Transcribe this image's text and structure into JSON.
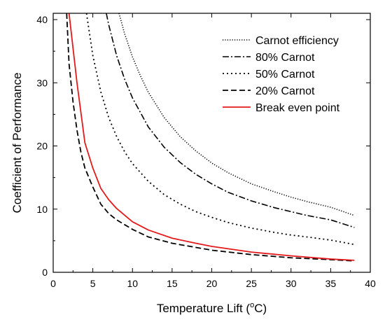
{
  "chart_data": {
    "type": "line",
    "xlabel_main": "Temperature Lift (",
    "xlabel_sup": "o",
    "xlabel_tail": "C)",
    "ylabel": "Coefficient of Performance",
    "xlim": [
      0,
      40
    ],
    "ylim": [
      0,
      41
    ],
    "xticks": [
      "0",
      "5",
      "10",
      "15",
      "20",
      "25",
      "30",
      "35",
      "40"
    ],
    "yticks": [
      "0",
      "10",
      "20",
      "30",
      "40"
    ],
    "grid": false,
    "legend_position": "top-right",
    "series": [
      {
        "name": "Carnot efficiency",
        "style": "dotted",
        "color": "#000000",
        "x": [
          8.3,
          9,
          10,
          11,
          12,
          14,
          16,
          18,
          20,
          22,
          25,
          28,
          30,
          32,
          35,
          38
        ],
        "y": [
          41.0,
          37.8,
          34.1,
          31.1,
          28.5,
          24.5,
          21.5,
          19.2,
          17.3,
          15.8,
          14.0,
          12.7,
          11.9,
          11.2,
          10.3,
          9.0
        ]
      },
      {
        "name": "80% Carnot",
        "style": "dashdot",
        "color": "#000000",
        "x": [
          6.7,
          7,
          8,
          9,
          10,
          12,
          14,
          16,
          18,
          20,
          22,
          25,
          28,
          30,
          32,
          35,
          38
        ],
        "y": [
          41.0,
          39.2,
          34.3,
          30.6,
          27.6,
          23.0,
          19.8,
          17.4,
          15.5,
          14.0,
          12.7,
          11.3,
          10.2,
          9.6,
          9.0,
          8.3,
          7.1
        ]
      },
      {
        "name": "50% Carnot",
        "style": "short-dash",
        "color": "#000000",
        "x": [
          4.2,
          5,
          6,
          7,
          8,
          9,
          10,
          12,
          14,
          16,
          18,
          20,
          22,
          25,
          28,
          30,
          32,
          35,
          38
        ],
        "y": [
          41.0,
          34.3,
          28.6,
          24.5,
          21.5,
          19.1,
          17.2,
          14.4,
          12.3,
          10.8,
          9.6,
          8.7,
          7.9,
          7.0,
          6.3,
          5.9,
          5.6,
          5.1,
          4.4
        ]
      },
      {
        "name": "20% Carnot",
        "style": "dashed",
        "color": "#000000",
        "x": [
          1.7,
          2,
          2.5,
          3,
          3.5,
          4,
          5,
          6,
          7,
          8,
          10,
          12,
          15,
          20,
          25,
          30,
          35,
          38
        ],
        "y": [
          41.0,
          33.0,
          27.0,
          22.5,
          19.0,
          16.5,
          13.5,
          10.8,
          9.3,
          8.3,
          6.8,
          5.6,
          4.6,
          3.5,
          2.8,
          2.3,
          2.0,
          1.8
        ]
      },
      {
        "name": "Break even point",
        "style": "solid",
        "color": "#e31a1c",
        "x": [
          2.0,
          3,
          4,
          5,
          6,
          7,
          8,
          10,
          12,
          15,
          18,
          20,
          25,
          30,
          35,
          38
        ],
        "y": [
          41.0,
          30.0,
          20.5,
          16.5,
          13.3,
          11.5,
          10.1,
          8.0,
          6.7,
          5.4,
          4.6,
          4.1,
          3.2,
          2.6,
          2.1,
          1.9
        ]
      }
    ],
    "legend": [
      "Carnot efficiency",
      "80% Carnot",
      "50% Carnot",
      "20% Carnot",
      "Break even point"
    ]
  }
}
